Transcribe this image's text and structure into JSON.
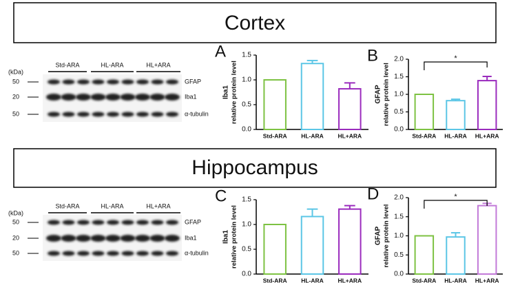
{
  "sections": [
    {
      "title": "Cortex",
      "blot": {
        "unit": "(kDa)",
        "groups": [
          "Std-ARA",
          "HL-ARA",
          "HL+ARA"
        ],
        "markers": [
          "50",
          "20",
          "50"
        ],
        "proteins": [
          "GFAP",
          "Iba1",
          "α-tubulin"
        ]
      }
    },
    {
      "title": "Hippocampus",
      "blot": {
        "unit": "(kDa)",
        "groups": [
          "Std-ARA",
          "HL-ARA",
          "HL+ARA"
        ],
        "markers": [
          "50",
          "20",
          "50"
        ],
        "proteins": [
          "GFAP",
          "Iba1",
          "α-tubulin"
        ]
      }
    }
  ],
  "chart_data": [
    {
      "type": "bar",
      "panel": "A",
      "ylabel": "Iba1",
      "ylabel_sub": "relative protein level",
      "categories": [
        "Std-ARA",
        "HL-ARA",
        "HL+ARA"
      ],
      "values": [
        1.0,
        1.33,
        0.82
      ],
      "errors": [
        0,
        0.06,
        0.12
      ],
      "colors": [
        "#7dc242",
        "#5bc6e6",
        "#9a2bbd"
      ],
      "ylim": [
        0,
        1.5
      ],
      "yticks": [
        {
          "value": 0,
          "label": "0.0"
        },
        0.5,
        {
          "value": 1,
          "label": "1.0"
        },
        1.5
      ]
    },
    {
      "type": "bar",
      "panel": "B",
      "ylabel": "GFAP",
      "ylabel_sub": "relative protein level",
      "categories": [
        "Std-ARA",
        "HL-ARA",
        "HL+ARA"
      ],
      "values": [
        1.0,
        0.82,
        1.39
      ],
      "errors": [
        0,
        0.04,
        0.12
      ],
      "colors": [
        "#7dc242",
        "#5bc6e6",
        "#9a2bbd"
      ],
      "annotation": "*",
      "ylim": [
        0,
        2
      ],
      "yticks": [
        {
          "value": 0,
          "label": "0.0"
        },
        0.5,
        {
          "value": 1,
          "label": "1.0"
        },
        1.5,
        {
          "value": 2,
          "label": "2.0"
        }
      ]
    },
    {
      "type": "bar",
      "panel": "C",
      "ylabel": "Iba1",
      "ylabel_sub": "relative protein level",
      "categories": [
        "Std-ARA",
        "HL-ARA",
        "HL+ARA"
      ],
      "values": [
        1.0,
        1.16,
        1.31
      ],
      "errors": [
        0,
        0.15,
        0.07
      ],
      "colors": [
        "#7dc242",
        "#5bc6e6",
        "#9a2bbd"
      ],
      "ylim": [
        0,
        1.5
      ],
      "yticks": [
        {
          "value": 0,
          "label": "0.0"
        },
        0.5,
        {
          "value": 1,
          "label": "1.0"
        },
        1.5
      ]
    },
    {
      "type": "bar",
      "panel": "D",
      "ylabel": "GFAP",
      "ylabel_sub": "relative protein level",
      "categories": [
        "Std-ARA",
        "HL-ARA",
        "HL+ARA"
      ],
      "values": [
        1.0,
        0.97,
        1.79
      ],
      "errors": [
        0,
        0.11,
        0.06
      ],
      "colors": [
        "#7dc242",
        "#5bc6e6",
        "#c27ad8"
      ],
      "annotation": "*",
      "ylim": [
        0,
        2
      ],
      "yticks": [
        {
          "value": 0,
          "label": "0.0"
        },
        0.5,
        {
          "value": 1,
          "label": "1.0"
        },
        1.5,
        {
          "value": 2,
          "label": "2.0"
        }
      ]
    }
  ]
}
